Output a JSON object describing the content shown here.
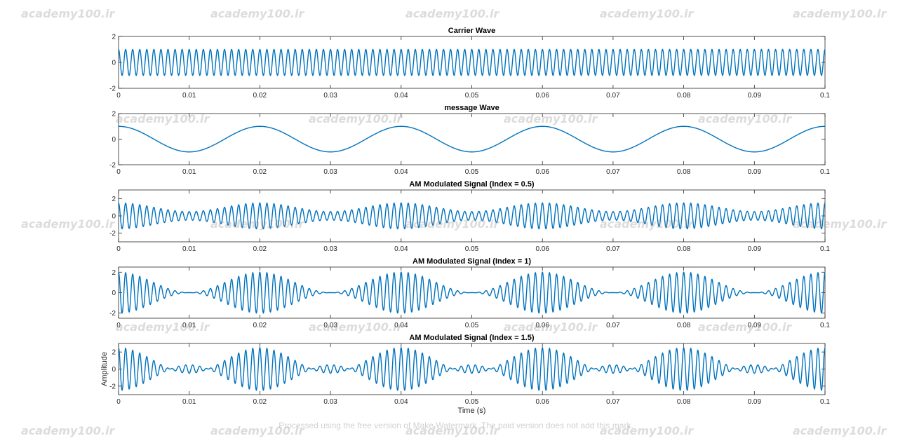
{
  "chart_data": [
    {
      "type": "line",
      "title": "Carrier Wave",
      "xlabel": "",
      "ylabel": "",
      "xlim": [
        0,
        0.1
      ],
      "ylim": [
        -2,
        2
      ],
      "xticks": [
        "0",
        "0.01",
        "0.02",
        "0.03",
        "0.04",
        "0.05",
        "0.06",
        "0.07",
        "0.08",
        "0.09",
        "0.1"
      ],
      "yticks": [
        "-2",
        "0",
        "2"
      ],
      "grid": false,
      "color": "#0072BD",
      "signal": {
        "carrier_hz": 1000,
        "carrier_amplitude": 1
      }
    },
    {
      "type": "line",
      "title": "message Wave",
      "xlabel": "",
      "ylabel": "",
      "xlim": [
        0,
        0.1
      ],
      "ylim": [
        -2,
        2
      ],
      "xticks": [
        "0",
        "0.01",
        "0.02",
        "0.03",
        "0.04",
        "0.05",
        "0.06",
        "0.07",
        "0.08",
        "0.09",
        "0.1"
      ],
      "yticks": [
        "-2",
        "0",
        "2"
      ],
      "grid": false,
      "color": "#0072BD",
      "signal": {
        "message_hz": 50,
        "message_amplitude": 1
      }
    },
    {
      "type": "line",
      "title": "AM Modulated Signal (Index = 0.5)",
      "xlabel": "",
      "ylabel": "",
      "xlim": [
        0,
        0.1
      ],
      "ylim": [
        -3,
        3
      ],
      "xticks": [
        "0",
        "0.01",
        "0.02",
        "0.03",
        "0.04",
        "0.05",
        "0.06",
        "0.07",
        "0.08",
        "0.09",
        "0.1"
      ],
      "yticks": [
        "-2",
        "0",
        "2"
      ],
      "grid": false,
      "color": "#0072BD",
      "signal": {
        "carrier_hz": 1000,
        "message_hz": 50,
        "modulation_index": 0.5
      }
    },
    {
      "type": "line",
      "title": "AM Modulated Signal (Index = 1)",
      "xlabel": "",
      "ylabel": "",
      "xlim": [
        0,
        0.1
      ],
      "ylim": [
        -2.5,
        2.5
      ],
      "xticks": [
        "0",
        "0.01",
        "0.02",
        "0.03",
        "0.04",
        "0.05",
        "0.06",
        "0.07",
        "0.08",
        "0.09",
        "0.1"
      ],
      "yticks": [
        "-2",
        "0",
        "2"
      ],
      "grid": false,
      "color": "#0072BD",
      "signal": {
        "carrier_hz": 1000,
        "message_hz": 50,
        "modulation_index": 1
      }
    },
    {
      "type": "line",
      "title": "AM Modulated Signal (Index = 1.5)",
      "xlabel": "Time (s)",
      "ylabel": "Amplitude",
      "xlim": [
        0,
        0.1
      ],
      "ylim": [
        -3,
        3
      ],
      "xticks": [
        "0",
        "0.01",
        "0.02",
        "0.03",
        "0.04",
        "0.05",
        "0.06",
        "0.07",
        "0.08",
        "0.09",
        "0.1"
      ],
      "yticks": [
        "-2",
        "0",
        "2"
      ],
      "grid": false,
      "color": "#0072BD",
      "signal": {
        "carrier_hz": 1000,
        "message_hz": 50,
        "modulation_index": 1.5
      }
    }
  ],
  "watermark": {
    "site_text": "academy100.ir",
    "note": "Processed using the free version of Make Watermark. The paid version does not add this mark."
  }
}
